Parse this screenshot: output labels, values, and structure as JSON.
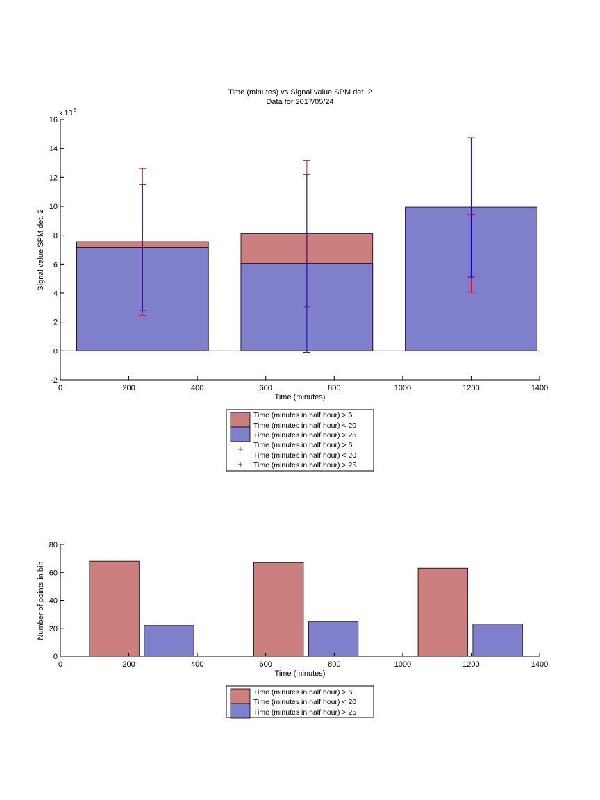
{
  "colors": {
    "series_red": "#cc7f7f",
    "series_blue": "#7f7fcc",
    "errorbar_red": "#ff0000",
    "errorbar_blue": "#0000ff"
  },
  "legend_labels": {
    "entry_1": "Time (minutes in half hour) > 6",
    "entry_2": "Time (minutes in half hour) < 20",
    "entry_3": "Time (minutes in half hour) > 25"
  },
  "chart_data": [
    {
      "type": "bar",
      "title": "Time (minutes) vs Signal value SPM det. 2",
      "subtitle": "Data for 2017/05/24",
      "xlabel": "Time (minutes)",
      "ylabel": "Signal value SPM det. 2",
      "y_exponent_label": "x 10",
      "y_exponent_value": "-5",
      "xlim": [
        0,
        1400
      ],
      "ylim": [
        -2,
        16
      ],
      "x_ticks": [
        "0",
        "200",
        "400",
        "600",
        "800",
        "1000",
        "1200",
        "1400"
      ],
      "y_ticks": [
        "-2",
        "0",
        "2",
        "4",
        "6",
        "8",
        "10",
        "12",
        "14",
        "16"
      ],
      "grid": false,
      "bars": [
        {
          "center": 240,
          "width": 385,
          "red": 7.55,
          "blue": 7.15
        },
        {
          "center": 720,
          "width": 385,
          "red": 8.1,
          "blue": 6.05
        },
        {
          "center": 1200,
          "width": 385,
          "red": null,
          "blue": 9.95
        }
      ],
      "series": [
        {
          "name": "Time (minutes in half hour) > 6 Time (minutes in half hour) < 20",
          "color": "#cc7f7f",
          "values": [
            7.55,
            8.1,
            null
          ]
        },
        {
          "name": "Time (minutes in half hour) > 25",
          "color": "#7f7fcc",
          "values": [
            7.15,
            6.05,
            9.95
          ]
        }
      ],
      "errorbars": [
        {
          "series": "red",
          "color": "#ff0000",
          "points": [
            {
              "x": 240,
              "low": 2.45,
              "high": 12.6
            },
            {
              "x": 720,
              "low": 3.05,
              "high": 13.15
            },
            {
              "x": 1200,
              "low": 4.05,
              "high": 9.45
            }
          ]
        },
        {
          "series": "blue",
          "color": "#0000ff",
          "points": [
            {
              "x": 240,
              "low": 2.8,
              "high": 11.5
            },
            {
              "x": 720,
              "low": -0.1,
              "high": 12.2
            },
            {
              "x": 1200,
              "low": 5.1,
              "high": 14.75
            }
          ]
        }
      ]
    },
    {
      "type": "bar",
      "title": "",
      "xlabel": "Time (minutes)",
      "ylabel": "Number of points in bin",
      "xlim": [
        0,
        1400
      ],
      "ylim": [
        0,
        80
      ],
      "x_ticks": [
        "0",
        "200",
        "400",
        "600",
        "800",
        "1000",
        "1200",
        "1400"
      ],
      "y_ticks": [
        "0",
        "20",
        "40",
        "60",
        "80"
      ],
      "grid": false,
      "bars": [
        {
          "x0": 85,
          "x1": 230,
          "value": 68,
          "series": "red"
        },
        {
          "x0": 245,
          "x1": 390,
          "value": 22,
          "series": "blue"
        },
        {
          "x0": 565,
          "x1": 710,
          "value": 67,
          "series": "red"
        },
        {
          "x0": 725,
          "x1": 870,
          "value": 25,
          "series": "blue"
        },
        {
          "x0": 1045,
          "x1": 1190,
          "value": 63,
          "series": "red"
        },
        {
          "x0": 1205,
          "x1": 1350,
          "value": 23,
          "series": "blue"
        }
      ],
      "series": [
        {
          "name": "Time (minutes in half hour) > 6 Time (minutes in half hour) < 20",
          "color": "#cc7f7f",
          "values": [
            68,
            67,
            63
          ]
        },
        {
          "name": "Time (minutes in half hour) > 25",
          "color": "#7f7fcc",
          "values": [
            22,
            25,
            23
          ]
        }
      ]
    }
  ]
}
